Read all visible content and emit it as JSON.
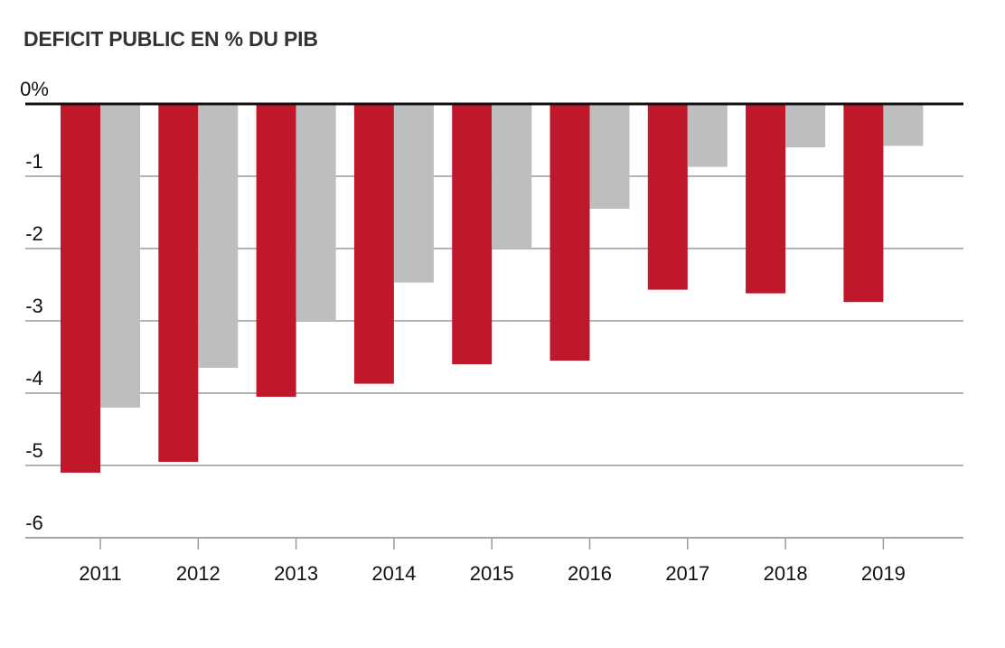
{
  "chart_data": {
    "type": "bar",
    "title": "DEFICIT PUBLIC EN % DU PIB",
    "xlabel": "",
    "ylabel": "",
    "ylim": [
      -6,
      0
    ],
    "y_ticks": [
      {
        "value": 0,
        "label": "0%"
      },
      {
        "value": -1,
        "label": "-1"
      },
      {
        "value": -2,
        "label": "-2"
      },
      {
        "value": -3,
        "label": "-3"
      },
      {
        "value": -4,
        "label": "-4"
      },
      {
        "value": -5,
        "label": "-5"
      },
      {
        "value": -6,
        "label": "-6"
      }
    ],
    "grid": true,
    "legend": "none",
    "categories": [
      "2011",
      "2012",
      "2013",
      "2014",
      "2015",
      "2016",
      "2017",
      "2018",
      "2019"
    ],
    "series": [
      {
        "color": "#c0182b",
        "values": [
          -5.1,
          -4.95,
          -4.05,
          -3.87,
          -3.6,
          -3.55,
          -2.57,
          -2.62,
          -2.74
        ]
      },
      {
        "color": "#bdbebf",
        "values": [
          -4.2,
          -3.65,
          -3.0,
          -2.47,
          -2.0,
          -1.45,
          -0.87,
          -0.6,
          -0.58
        ]
      }
    ]
  }
}
